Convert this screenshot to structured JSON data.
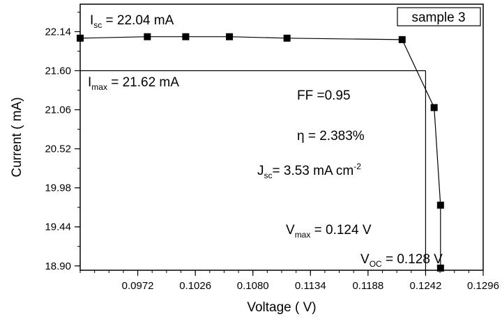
{
  "chart_data": {
    "type": "line",
    "xlabel": "Voltage ( V)",
    "ylabel": "Current ( mA)",
    "xlim": [
      0.0918,
      0.1296
    ],
    "ylim": [
      18.84,
      22.52
    ],
    "x_ticks": [
      "0.0972",
      "0.1026",
      "0.1080",
      "0.1134",
      "0.1188",
      "0.1242",
      "0.1296"
    ],
    "y_ticks": [
      "18.90",
      "19.44",
      "19.98",
      "20.52",
      "21.06",
      "21.60",
      "22.14"
    ],
    "legend": "sample 3",
    "series": [
      {
        "name": "sample 3",
        "x": [
          0.0918,
          0.0981,
          0.1017,
          0.1058,
          0.1112,
          0.122,
          0.125,
          0.1256,
          0.1256
        ],
        "y": [
          22.05,
          22.07,
          22.07,
          22.07,
          22.05,
          22.03,
          21.09,
          19.74,
          18.87
        ]
      }
    ],
    "annotations": {
      "isc": {
        "label": "I",
        "sub": "sc",
        "text": " = 22.04 mA"
      },
      "imax": {
        "label": "I",
        "sub": "max",
        "text": " = 21.62 mA"
      },
      "ff": "FF =0.95",
      "eta": "η = 2.383%",
      "jsc": {
        "label": "J",
        "sub": "sc",
        "text": "= 3.53 mA cm",
        "sup": "-2"
      },
      "vmax": {
        "label": "V",
        "sub": "max",
        "text": " = 0.124 V"
      },
      "voc": {
        "label": "V",
        "sub": "OC",
        "text": " = 0.128 V"
      }
    },
    "guide_lines": {
      "imax": 21.6,
      "vmax": 0.1242
    }
  }
}
